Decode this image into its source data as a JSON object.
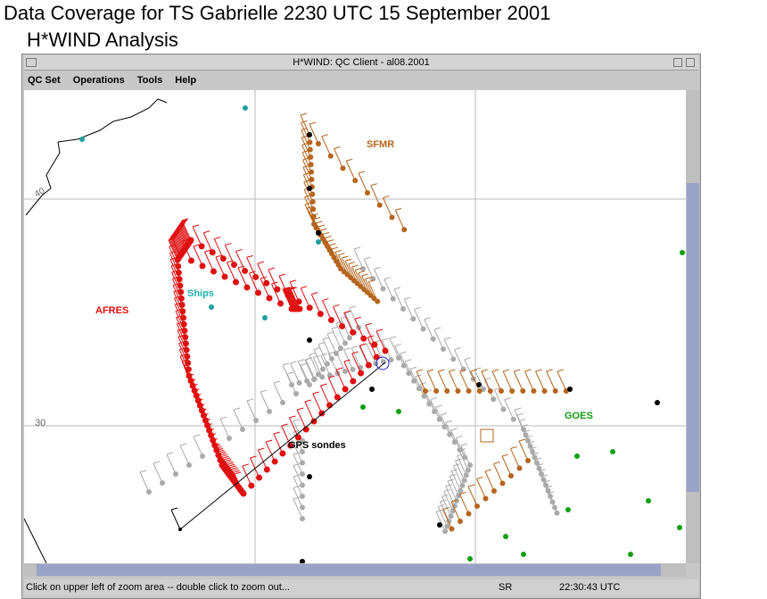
{
  "header": {
    "title": "Data Coverage for TS Gabrielle 2230 UTC 15 September 2001",
    "subtitle": "H*WIND Analysis"
  },
  "window": {
    "title": "H*WIND: QC Client - al08.2001"
  },
  "menu": [
    "QC Set",
    "Operations",
    "Tools",
    "Help"
  ],
  "map": {
    "labels": {
      "sfmr": "SFMR",
      "afres": "AFRES",
      "ships": "Ships",
      "gps": "GPS sondes",
      "goes": "GOES"
    },
    "latitudes": [
      "40",
      "30"
    ]
  },
  "status": {
    "message": "Click on upper left of zoom area -- double click to zoom out...",
    "mode": "SR",
    "time": "22:30:43 UTC"
  }
}
